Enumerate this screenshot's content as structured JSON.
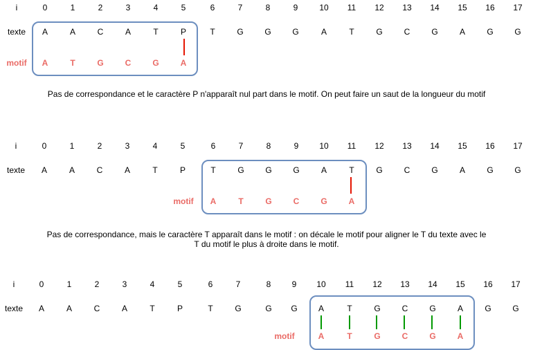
{
  "labels": {
    "index": "i",
    "text": "texte",
    "motif": "motif"
  },
  "colors": {
    "motif_text": "#ea6b66",
    "box_border": "#6c8ebf",
    "mismatch_line": "#e51400",
    "match_line": "#009900"
  },
  "indices": [
    "0",
    "1",
    "2",
    "3",
    "4",
    "5",
    "6",
    "7",
    "8",
    "9",
    "10",
    "11",
    "12",
    "13",
    "14",
    "15",
    "16",
    "17"
  ],
  "text_chars": [
    "A",
    "A",
    "C",
    "A",
    "T",
    "P",
    "T",
    "G",
    "G",
    "G",
    "A",
    "T",
    "G",
    "C",
    "G",
    "A",
    "G",
    "G"
  ],
  "motif_chars": [
    "A",
    "T",
    "G",
    "C",
    "G",
    "A"
  ],
  "steps": [
    {
      "shift": 0,
      "caption": "Pas de correspondance et le caractère P n'apparaît nul part dans le motif. On peut faire un saut de la longueur du motif",
      "caption_line2": "",
      "comparison": "mismatch",
      "compare_positions": [
        5
      ]
    },
    {
      "shift": 6,
      "caption": "Pas de correspondance, mais le caractère T apparaît dans le motif : on décale le motif pour aligner le T du texte avec le",
      "caption_line2": "T du motif le plus à droite dans le motif.",
      "comparison": "mismatch",
      "compare_positions": [
        5
      ]
    },
    {
      "shift": 10,
      "caption": "",
      "caption_line2": "",
      "comparison": "match",
      "compare_positions": [
        0,
        1,
        2,
        3,
        4,
        5
      ]
    }
  ]
}
